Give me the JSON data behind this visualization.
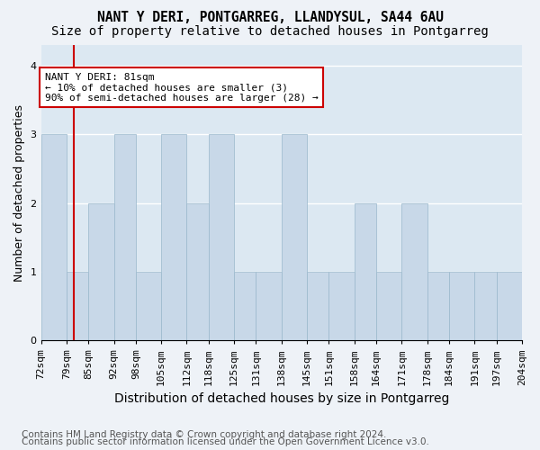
{
  "title1": "NANT Y DERI, PONTGARREG, LLANDYSUL, SA44 6AU",
  "title2": "Size of property relative to detached houses in Pontgarreg",
  "xlabel": "Distribution of detached houses by size in Pontgarreg",
  "ylabel": "Number of detached properties",
  "tick_labels": [
    "72sqm",
    "79sqm",
    "85sqm",
    "92sqm",
    "98sqm",
    "105sqm",
    "112sqm",
    "118sqm",
    "125sqm",
    "131sqm",
    "138sqm",
    "145sqm",
    "151sqm",
    "158sqm",
    "164sqm",
    "171sqm",
    "178sqm",
    "184sqm",
    "191sqm",
    "197sqm",
    "204sqm"
  ],
  "bin_edges": [
    72,
    79,
    85,
    92,
    98,
    105,
    112,
    118,
    125,
    131,
    138,
    145,
    151,
    158,
    164,
    171,
    178,
    184,
    191,
    197,
    204
  ],
  "values": [
    3,
    1,
    2,
    3,
    1,
    3,
    2,
    3,
    1,
    1,
    3,
    1,
    1,
    2,
    1,
    2,
    1,
    1,
    1,
    1
  ],
  "bar_color": "#c8d8e8",
  "bar_edgecolor": "#9ab8cc",
  "vline_x": 81,
  "vline_color": "#cc0000",
  "annotation_text": "NANT Y DERI: 81sqm\n← 10% of detached houses are smaller (3)\n90% of semi-detached houses are larger (28) →",
  "annotation_box_facecolor": "#ffffff",
  "annotation_box_edgecolor": "#cc0000",
  "ylim": [
    0,
    4.3
  ],
  "yticks": [
    0,
    1,
    2,
    3,
    4
  ],
  "footer1": "Contains HM Land Registry data © Crown copyright and database right 2024.",
  "footer2": "Contains public sector information licensed under the Open Government Licence v3.0.",
  "bg_color": "#eef2f7",
  "plot_bg_color": "#dce8f2",
  "grid_color": "#ffffff",
  "title1_fontsize": 10.5,
  "title2_fontsize": 10,
  "xlabel_fontsize": 10,
  "ylabel_fontsize": 9,
  "tick_fontsize": 8,
  "footer_fontsize": 7.5
}
